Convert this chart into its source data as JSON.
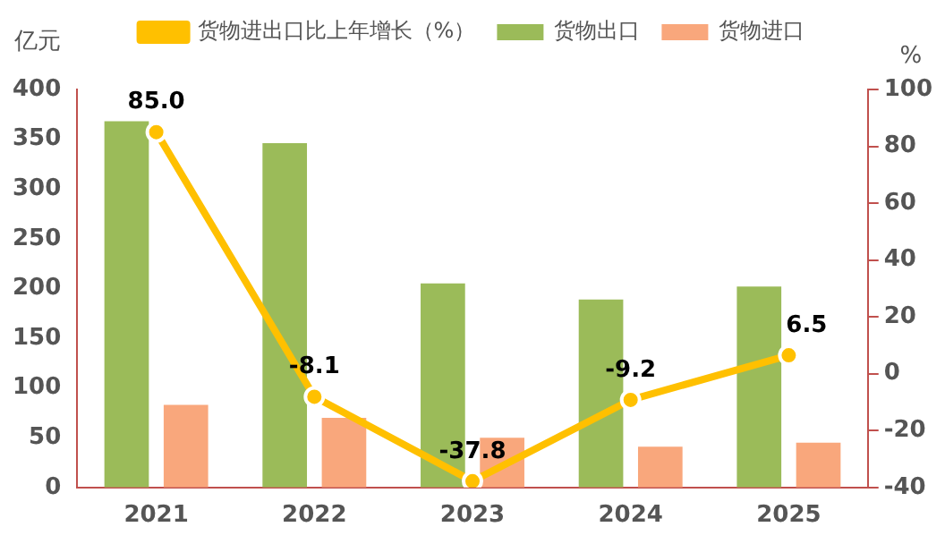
{
  "chart_data": {
    "type": "bar",
    "ylabel": "亿元",
    "y2label": "%",
    "categories": [
      "2021",
      "2022",
      "2023",
      "2024",
      "2025"
    ],
    "series": [
      {
        "name": "货物出口",
        "color": "#9bbb59",
        "values": [
          368,
          346,
          205,
          189,
          202
        ]
      },
      {
        "name": "货物进口",
        "color": "#f9a77c",
        "values": [
          83,
          70,
          50,
          41,
          45
        ]
      },
      {
        "name": "货物进出口比上年增长（%）",
        "type": "line",
        "axis": "y2",
        "color": "#ffc000",
        "values": [
          85.0,
          -8.1,
          -37.8,
          -9.2,
          6.5
        ],
        "value_labels": [
          "85.0",
          "-8.1",
          "-37.8",
          "-9.2",
          "6.5"
        ]
      }
    ],
    "ylim": [
      0,
      400
    ],
    "yticks": [
      0,
      50,
      100,
      150,
      200,
      250,
      300,
      350,
      400
    ],
    "y2lim": [
      -40,
      100
    ],
    "y2ticks": [
      -40,
      -20,
      0,
      20,
      40,
      60,
      80,
      100
    ],
    "grid": false,
    "legend": "top",
    "marker": "circle"
  }
}
